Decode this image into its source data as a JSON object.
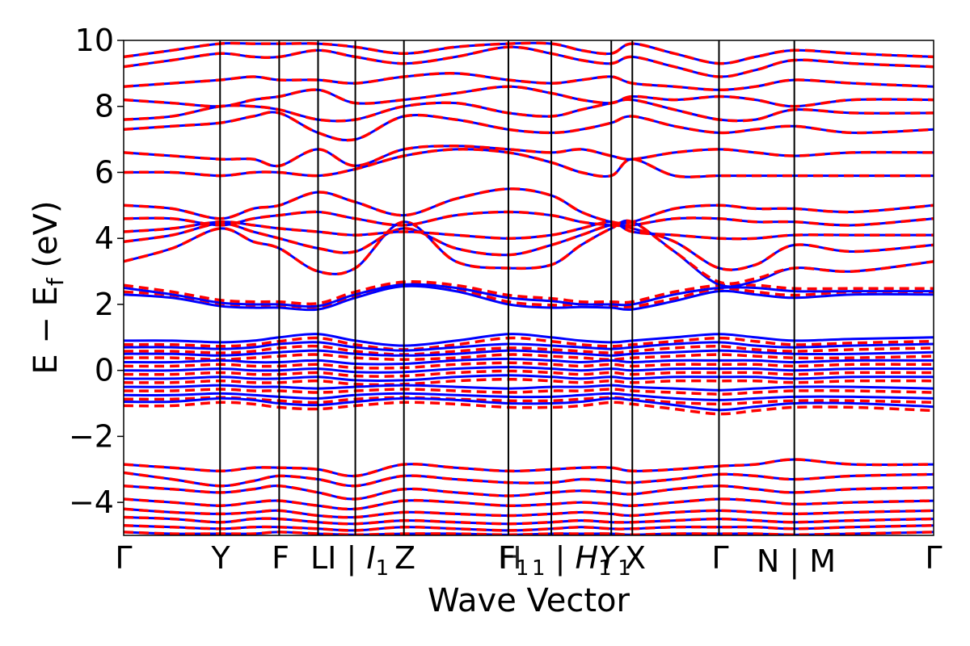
{
  "chart_data": {
    "type": "line",
    "title": "",
    "xlabel": "Wave Vector",
    "ylabel": "E − E",
    "ylabel_subscript": "f",
    "ylabel_unit": " (eV)",
    "ylim": [
      -5,
      10
    ],
    "yticks": [
      10,
      8,
      6,
      4,
      2,
      0,
      -2,
      -4
    ],
    "ytick_labels": [
      "10",
      "8",
      "6",
      "4",
      "2",
      "0",
      "−2",
      "−4"
    ],
    "xlim": [
      0,
      1
    ],
    "kpoints": [
      {
        "x": 0.0,
        "label": "Γ"
      },
      {
        "x": 0.119,
        "label": "Y"
      },
      {
        "x": 0.192,
        "label": "F"
      },
      {
        "x": 0.24,
        "label": "L|I"
      },
      {
        "x": 0.286,
        "label": "I1"
      },
      {
        "x": 0.346,
        "label": "Z"
      },
      {
        "x": 0.475,
        "label": "F1"
      },
      {
        "x": 0.528,
        "label": "H1"
      },
      {
        "x": 0.602,
        "label": "Y1"
      },
      {
        "x": 0.628,
        "label": "X"
      },
      {
        "x": 0.735,
        "label": "Γ"
      },
      {
        "x": 0.828,
        "label": "N|M"
      },
      {
        "x": 1.0,
        "label": "Γ"
      }
    ],
    "tick_label_texts": [
      "Γ",
      "Y",
      "F",
      "L",
      "I | ",
      "I",
      "1",
      "Z",
      "F",
      "1",
      "H",
      "1",
      " | ",
      "H",
      "1",
      "Y",
      "1",
      "X",
      "Γ",
      "N | M",
      "Γ"
    ],
    "series": [
      {
        "color": "#0000ff",
        "linestyle": "solid"
      },
      {
        "color": "#ff0000",
        "linestyle": "dashed"
      }
    ],
    "bands": {
      "x": [
        0.0,
        0.06,
        0.119,
        0.16,
        0.192,
        0.24,
        0.286,
        0.346,
        0.41,
        0.475,
        0.528,
        0.565,
        0.602,
        0.628,
        0.68,
        0.735,
        0.78,
        0.828,
        0.9,
        1.0
      ],
      "conduction": [
        [
          2.3,
          2.2,
          1.95,
          1.9,
          1.9,
          1.85,
          2.2,
          2.55,
          2.4,
          2.0,
          1.9,
          1.92,
          1.9,
          1.85,
          2.1,
          2.4,
          2.3,
          2.2,
          2.3,
          2.3
        ],
        [
          2.5,
          2.3,
          2.05,
          2.0,
          2.0,
          1.95,
          2.3,
          2.6,
          2.5,
          2.2,
          2.1,
          2.0,
          2.0,
          2.0,
          2.3,
          2.5,
          2.5,
          2.4,
          2.4,
          2.4
        ],
        [
          3.3,
          3.7,
          4.3,
          3.9,
          3.7,
          3.0,
          3.1,
          4.5,
          3.3,
          3.1,
          3.2,
          3.8,
          4.3,
          4.5,
          3.6,
          2.6,
          2.7,
          3.1,
          3.0,
          3.3
        ],
        [
          3.9,
          4.1,
          4.45,
          4.2,
          4.0,
          3.7,
          3.6,
          4.3,
          3.7,
          3.5,
          3.8,
          4.1,
          4.4,
          4.3,
          3.9,
          3.1,
          3.2,
          3.8,
          3.6,
          3.8
        ],
        [
          4.2,
          4.3,
          4.5,
          4.4,
          4.3,
          4.2,
          4.1,
          4.2,
          4.1,
          4.0,
          4.1,
          4.3,
          4.5,
          4.2,
          4.1,
          4.0,
          4.0,
          4.1,
          4.1,
          4.1
        ],
        [
          4.6,
          4.6,
          4.4,
          4.6,
          4.7,
          4.8,
          4.6,
          4.4,
          4.7,
          4.8,
          4.7,
          4.5,
          4.4,
          4.4,
          4.6,
          4.6,
          4.5,
          4.5,
          4.4,
          4.6
        ],
        [
          5.0,
          4.9,
          4.6,
          4.9,
          5.0,
          5.4,
          5.1,
          4.7,
          5.2,
          5.5,
          5.3,
          4.8,
          4.5,
          4.5,
          4.9,
          5.0,
          4.9,
          4.9,
          4.8,
          5.0
        ],
        [
          6.0,
          6.0,
          5.9,
          6.0,
          6.0,
          5.9,
          6.1,
          6.5,
          6.7,
          6.6,
          6.3,
          6.0,
          5.9,
          6.4,
          5.9,
          5.9,
          5.9,
          5.9,
          5.9,
          5.9
        ],
        [
          6.6,
          6.5,
          6.4,
          6.4,
          6.2,
          6.7,
          6.2,
          6.7,
          6.8,
          6.7,
          6.6,
          6.7,
          6.5,
          6.4,
          6.6,
          6.7,
          6.6,
          6.5,
          6.6,
          6.6
        ],
        [
          7.3,
          7.4,
          7.5,
          7.7,
          7.8,
          7.2,
          7.0,
          7.7,
          7.6,
          7.3,
          7.2,
          7.3,
          7.5,
          7.7,
          7.4,
          7.2,
          7.3,
          7.4,
          7.2,
          7.3
        ],
        [
          7.6,
          7.7,
          8.0,
          8.0,
          7.9,
          7.6,
          7.6,
          8.0,
          8.1,
          7.8,
          7.7,
          7.9,
          8.1,
          8.2,
          7.9,
          7.6,
          7.6,
          7.9,
          7.8,
          7.8
        ],
        [
          8.2,
          8.1,
          8.0,
          8.2,
          8.3,
          8.5,
          8.1,
          8.2,
          8.4,
          8.6,
          8.4,
          8.2,
          8.1,
          8.3,
          8.2,
          8.3,
          8.2,
          8.0,
          8.2,
          8.2
        ],
        [
          8.6,
          8.7,
          8.8,
          8.9,
          8.8,
          8.8,
          8.7,
          8.9,
          9.0,
          8.8,
          8.7,
          8.8,
          8.9,
          8.7,
          8.6,
          8.5,
          8.6,
          8.8,
          8.7,
          8.6
        ],
        [
          9.2,
          9.4,
          9.6,
          9.5,
          9.5,
          9.7,
          9.5,
          9.3,
          9.5,
          9.8,
          9.6,
          9.4,
          9.3,
          9.5,
          9.2,
          8.9,
          9.1,
          9.4,
          9.3,
          9.2
        ],
        [
          9.5,
          9.7,
          9.9,
          9.9,
          9.9,
          9.9,
          9.8,
          9.6,
          9.8,
          9.9,
          9.9,
          9.7,
          9.6,
          9.9,
          9.6,
          9.3,
          9.5,
          9.7,
          9.6,
          9.5
        ]
      ],
      "valence": [
        [
          0.9,
          0.9,
          0.85,
          0.9,
          1.0,
          1.1,
          0.9,
          0.75,
          0.9,
          1.1,
          1.0,
          0.9,
          0.85,
          0.9,
          1.0,
          1.1,
          1.0,
          0.9,
          0.95,
          1.0
        ],
        [
          0.7,
          0.7,
          0.65,
          0.7,
          0.8,
          0.85,
          0.7,
          0.6,
          0.7,
          0.8,
          0.75,
          0.7,
          0.65,
          0.7,
          0.8,
          0.85,
          0.75,
          0.7,
          0.75,
          0.8
        ],
        [
          0.5,
          0.5,
          0.45,
          0.5,
          0.55,
          0.6,
          0.5,
          0.45,
          0.5,
          0.6,
          0.55,
          0.5,
          0.45,
          0.5,
          0.55,
          0.6,
          0.55,
          0.5,
          0.5,
          0.55
        ],
        [
          0.25,
          0.25,
          0.3,
          0.25,
          0.25,
          0.3,
          0.2,
          0.2,
          0.3,
          0.35,
          0.3,
          0.25,
          0.3,
          0.25,
          0.3,
          0.3,
          0.3,
          0.25,
          0.3,
          0.3
        ],
        [
          0.0,
          0.0,
          0.05,
          0.0,
          0.0,
          0.05,
          -0.05,
          -0.05,
          0.05,
          0.1,
          0.05,
          0.0,
          0.05,
          0.0,
          0.05,
          0.05,
          0.05,
          0.0,
          0.05,
          0.05
        ],
        [
          -0.25,
          -0.25,
          -0.2,
          -0.25,
          -0.25,
          -0.2,
          -0.3,
          -0.3,
          -0.2,
          -0.15,
          -0.2,
          -0.25,
          -0.2,
          -0.25,
          -0.2,
          -0.2,
          -0.2,
          -0.25,
          -0.2,
          -0.2
        ],
        [
          -0.5,
          -0.5,
          -0.45,
          -0.5,
          -0.5,
          -0.55,
          -0.5,
          -0.45,
          -0.5,
          -0.55,
          -0.5,
          -0.5,
          -0.45,
          -0.5,
          -0.55,
          -0.6,
          -0.55,
          -0.5,
          -0.5,
          -0.55
        ],
        [
          -0.75,
          -0.75,
          -0.7,
          -0.75,
          -0.8,
          -0.85,
          -0.75,
          -0.7,
          -0.75,
          -0.8,
          -0.8,
          -0.75,
          -0.7,
          -0.75,
          -0.85,
          -0.9,
          -0.85,
          -0.8,
          -0.8,
          -0.85
        ],
        [
          -0.95,
          -0.95,
          -0.85,
          -0.9,
          -1.0,
          -1.05,
          -0.95,
          -0.85,
          -0.9,
          -1.0,
          -1.0,
          -0.95,
          -0.85,
          -0.9,
          -1.05,
          -1.2,
          -1.1,
          -1.0,
          -1.0,
          -1.1
        ]
      ],
      "lower": [
        [
          -2.85,
          -2.95,
          -3.05,
          -2.95,
          -2.95,
          -3.0,
          -3.2,
          -2.85,
          -2.95,
          -3.05,
          -3.0,
          -2.95,
          -2.95,
          -3.05,
          -3.0,
          -2.9,
          -2.85,
          -2.7,
          -2.85,
          -2.85
        ],
        [
          -3.1,
          -3.3,
          -3.5,
          -3.35,
          -3.2,
          -3.3,
          -3.5,
          -3.2,
          -3.3,
          -3.4,
          -3.4,
          -3.3,
          -3.35,
          -3.4,
          -3.3,
          -3.15,
          -3.2,
          -3.3,
          -3.2,
          -3.15
        ],
        [
          -3.5,
          -3.6,
          -3.7,
          -3.6,
          -3.5,
          -3.7,
          -3.9,
          -3.6,
          -3.7,
          -3.8,
          -3.7,
          -3.65,
          -3.7,
          -3.75,
          -3.6,
          -3.5,
          -3.6,
          -3.7,
          -3.6,
          -3.55
        ],
        [
          -3.9,
          -4.0,
          -4.1,
          -4.0,
          -3.95,
          -4.1,
          -4.2,
          -3.95,
          -4.0,
          -4.1,
          -4.05,
          -4.0,
          -4.05,
          -4.1,
          -4.0,
          -3.9,
          -3.95,
          -4.05,
          -4.0,
          -3.95
        ],
        [
          -4.2,
          -4.3,
          -4.35,
          -4.3,
          -4.25,
          -4.4,
          -4.45,
          -4.3,
          -4.35,
          -4.4,
          -4.35,
          -4.3,
          -4.35,
          -4.4,
          -4.3,
          -4.25,
          -4.3,
          -4.35,
          -4.3,
          -4.25
        ],
        [
          -4.45,
          -4.5,
          -4.6,
          -4.5,
          -4.5,
          -4.6,
          -4.65,
          -4.55,
          -4.6,
          -4.65,
          -4.6,
          -4.55,
          -4.6,
          -4.6,
          -4.55,
          -4.5,
          -4.55,
          -4.6,
          -4.55,
          -4.5
        ],
        [
          -4.7,
          -4.75,
          -4.8,
          -4.75,
          -4.75,
          -4.8,
          -4.85,
          -4.75,
          -4.8,
          -4.85,
          -4.8,
          -4.75,
          -4.8,
          -4.8,
          -4.75,
          -4.75,
          -4.75,
          -4.8,
          -4.75,
          -4.7
        ],
        [
          -4.9,
          -4.95,
          -4.95,
          -4.95,
          -4.9,
          -4.95,
          -4.98,
          -4.95,
          -4.95,
          -4.98,
          -4.95,
          -4.95,
          -4.95,
          -4.98,
          -4.95,
          -4.95,
          -4.95,
          -4.98,
          -4.95,
          -4.9
        ]
      ]
    },
    "grid": false,
    "legend": "none"
  }
}
